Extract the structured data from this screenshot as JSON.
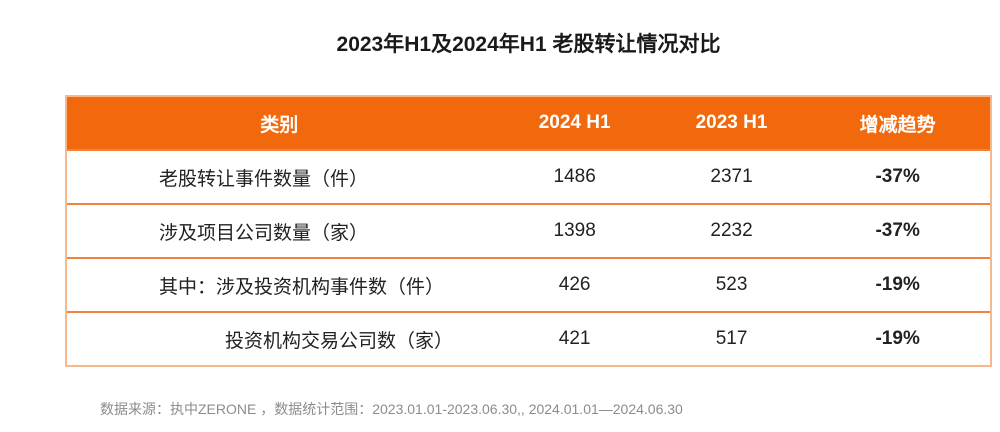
{
  "title": "2023年H1及2024年H1 老股转让情况对比",
  "chart_data": {
    "type": "table",
    "title": "2023年H1及2024年H1 老股转让情况对比",
    "columns": [
      "类别",
      "2024 H1",
      "2023 H1",
      "增减趋势"
    ],
    "rows": [
      [
        "老股转让事件数量（件）",
        "1486",
        "2371",
        "-37%"
      ],
      [
        "涉及项目公司数量（家）",
        "1398",
        "2232",
        "-37%"
      ],
      [
        "其中：涉及投资机构事件数（件）",
        "426",
        "523",
        "-19%"
      ],
      [
        "投资机构交易公司数（家）",
        "421",
        "517",
        "-19%"
      ]
    ],
    "values_2024_h1": [
      1486,
      1398,
      426,
      421
    ],
    "values_2023_h1": [
      2371,
      2232,
      523,
      517
    ],
    "trend_percent": [
      "-37%",
      "-37%",
      "-19%",
      "-19%"
    ]
  },
  "footer": {
    "source_note": "数据来源：执中ZERONE ，数据统计范围：2023.01.01-2023.06.30,,  2024.01.01—2024.06.30"
  },
  "colors": {
    "header_bg": "#f2690d",
    "outer_border": "#f8b88c",
    "row_divider": "#f0813f",
    "header_text": "#ffffff",
    "body_text": "#222222",
    "title_text": "#1a1a1a",
    "footer_text": "#8c8c8c"
  }
}
